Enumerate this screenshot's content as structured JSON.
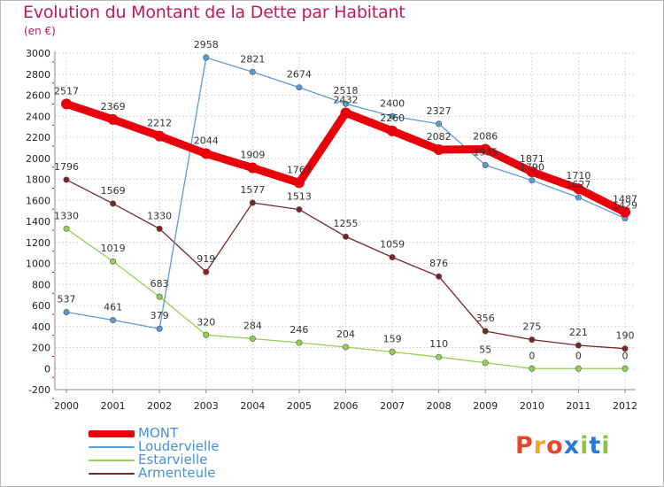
{
  "title": "Evolution du Montant de la Dette par Habitant",
  "subtitle": "(en €)",
  "logo": {
    "text": "Proxiti",
    "colors": [
      "#e8462a",
      "#f5a623",
      "#e8462a",
      "#2a7bd3",
      "#8cc63f",
      "#2a7bd3",
      "#8cc63f"
    ]
  },
  "colors": {
    "title": "#c2185b",
    "grid": "#d8d8d8",
    "label": "#333333"
  },
  "chart_data": {
    "type": "line",
    "title": "Evolution du Montant de la Dette par Habitant",
    "ylabel": "(en €)",
    "x": [
      2000,
      2001,
      2002,
      2003,
      2004,
      2005,
      2006,
      2007,
      2008,
      2009,
      2010,
      2011,
      2012
    ],
    "ylim": [
      -200,
      3000
    ],
    "ytick_step": 200,
    "grid": true,
    "legend": "bottom-left",
    "series": [
      {
        "name": "MONT",
        "color": "#e8000b",
        "values": [
          2517,
          2369,
          2212,
          2044,
          1909,
          1767,
          2432,
          2260,
          2082,
          2086,
          1871,
          1710,
          1487
        ]
      },
      {
        "name": "Loudervielle",
        "color": "#5b9bd5",
        "values": [
          537,
          461,
          379,
          2958,
          2821,
          2674,
          2518,
          2400,
          2327,
          1935,
          1790,
          1627,
          1429
        ]
      },
      {
        "name": "Estarvielle",
        "color": "#92d050",
        "values": [
          1330,
          1019,
          683,
          320,
          284,
          246,
          204,
          159,
          110,
          55,
          0,
          0,
          0
        ]
      },
      {
        "name": "Armenteule",
        "color": "#7b2426",
        "values": [
          1796,
          1569,
          1330,
          919,
          1577,
          1513,
          1255,
          1059,
          876,
          356,
          275,
          221,
          190
        ]
      }
    ]
  }
}
